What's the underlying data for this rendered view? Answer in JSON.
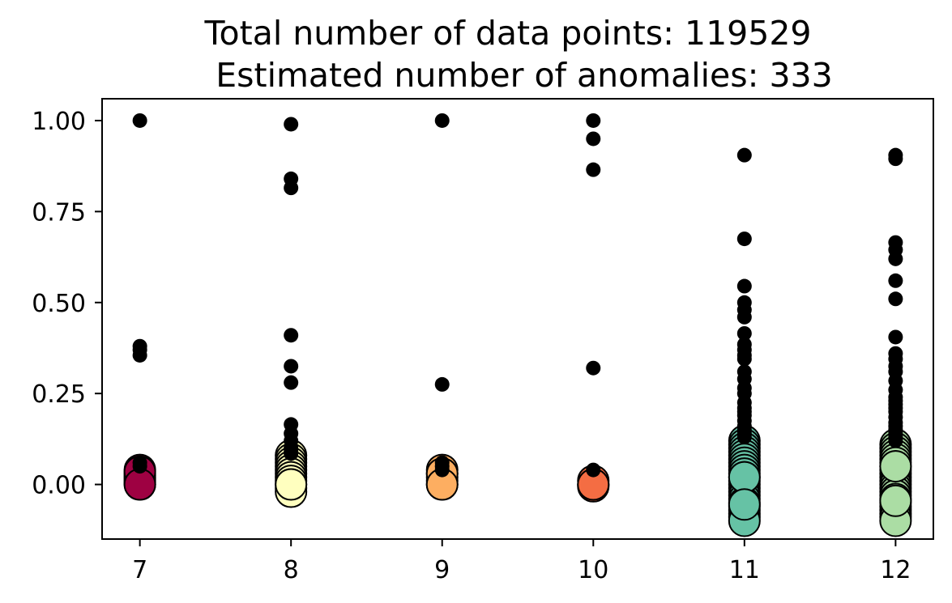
{
  "chart_data": {
    "type": "scatter",
    "title_lines": [
      "Total number of data points: 119529",
      "Estimated number of anomalies: 333"
    ],
    "xlabel": "",
    "ylabel": "",
    "xlim": [
      6.75,
      12.25
    ],
    "ylim": [
      -0.15,
      1.06
    ],
    "x_ticks": [
      7,
      8,
      9,
      10,
      11,
      12
    ],
    "y_ticks": [
      0.0,
      0.25,
      0.5,
      0.75,
      1.0
    ],
    "y_tick_labels": [
      "0.00",
      "0.25",
      "0.50",
      "0.75",
      "1.00"
    ],
    "grid": false,
    "legend": "none",
    "colors": {
      "anomaly": "#000000",
      "cluster_7": "#9e0142",
      "cluster_8": "#ffffbf",
      "cluster_9": "#fdae61",
      "cluster_10": "#f46d43",
      "cluster_11": "#66c2a5",
      "cluster_12": "#abdda4"
    },
    "series": [
      {
        "group": "normal",
        "color_key": "cluster_7",
        "x": 7,
        "y": [
          0.04,
          0.03,
          0.02,
          0.015,
          0.01,
          0.005,
          0.0,
          0.025,
          0.035,
          0.0
        ]
      },
      {
        "group": "normal",
        "color_key": "cluster_8",
        "x": 8,
        "y": [
          0.08,
          0.07,
          0.06,
          0.05,
          0.04,
          0.03,
          0.02,
          0.01,
          0.0,
          -0.01,
          -0.02,
          0.0
        ]
      },
      {
        "group": "normal",
        "color_key": "cluster_9",
        "x": 9,
        "y": [
          0.04,
          0.03,
          0.02,
          0.01,
          0.0,
          0.03,
          0.0
        ]
      },
      {
        "group": "normal",
        "color_key": "cluster_10",
        "x": 10,
        "y": [
          0.01,
          0.0,
          -0.005,
          0.0
        ]
      },
      {
        "group": "normal",
        "color_key": "cluster_11",
        "x": 11,
        "y": [
          0.12,
          0.11,
          0.1,
          0.09,
          0.08,
          0.07,
          0.06,
          0.05,
          0.04,
          0.03,
          0.02,
          0.01,
          0.0,
          -0.01,
          -0.02,
          -0.03,
          -0.04,
          -0.05,
          -0.06,
          -0.07,
          -0.08,
          -0.09,
          -0.1,
          0.02,
          -0.055
        ]
      },
      {
        "group": "normal",
        "color_key": "cluster_12",
        "x": 12,
        "y": [
          0.11,
          0.1,
          0.09,
          0.08,
          0.07,
          0.06,
          0.05,
          0.04,
          0.03,
          0.02,
          0.01,
          0.0,
          -0.01,
          -0.02,
          -0.03,
          -0.04,
          -0.05,
          -0.06,
          -0.07,
          -0.08,
          -0.09,
          -0.1,
          0.05,
          -0.045
        ]
      },
      {
        "group": "anomaly",
        "color_key": "anomaly",
        "x": 7,
        "y": [
          1.0,
          0.38,
          0.37,
          0.355,
          0.06,
          0.05
        ]
      },
      {
        "group": "anomaly",
        "color_key": "anomaly",
        "x": 8,
        "y": [
          0.99,
          0.84,
          0.815,
          0.41,
          0.325,
          0.28,
          0.165,
          0.14,
          0.12,
          0.1,
          0.09,
          0.085
        ]
      },
      {
        "group": "anomaly",
        "color_key": "anomaly",
        "x": 9,
        "y": [
          1.0,
          0.275,
          0.06,
          0.05,
          0.04
        ]
      },
      {
        "group": "anomaly",
        "color_key": "anomaly",
        "x": 10,
        "y": [
          1.0,
          0.95,
          0.865,
          0.32,
          0.04
        ]
      },
      {
        "group": "anomaly",
        "color_key": "anomaly",
        "x": 11,
        "y": [
          0.905,
          0.675,
          0.545,
          0.5,
          0.48,
          0.46,
          0.415,
          0.385,
          0.37,
          0.355,
          0.345,
          0.31,
          0.29,
          0.265,
          0.25,
          0.225,
          0.21,
          0.2,
          0.19,
          0.175,
          0.16,
          0.15,
          0.14,
          0.13
        ]
      },
      {
        "group": "anomaly",
        "color_key": "anomaly",
        "x": 12,
        "y": [
          0.905,
          0.895,
          0.665,
          0.645,
          0.62,
          0.56,
          0.51,
          0.405,
          0.36,
          0.345,
          0.325,
          0.31,
          0.285,
          0.26,
          0.24,
          0.23,
          0.22,
          0.21,
          0.2,
          0.185,
          0.17,
          0.16,
          0.15,
          0.14,
          0.13,
          0.12
        ]
      }
    ]
  }
}
